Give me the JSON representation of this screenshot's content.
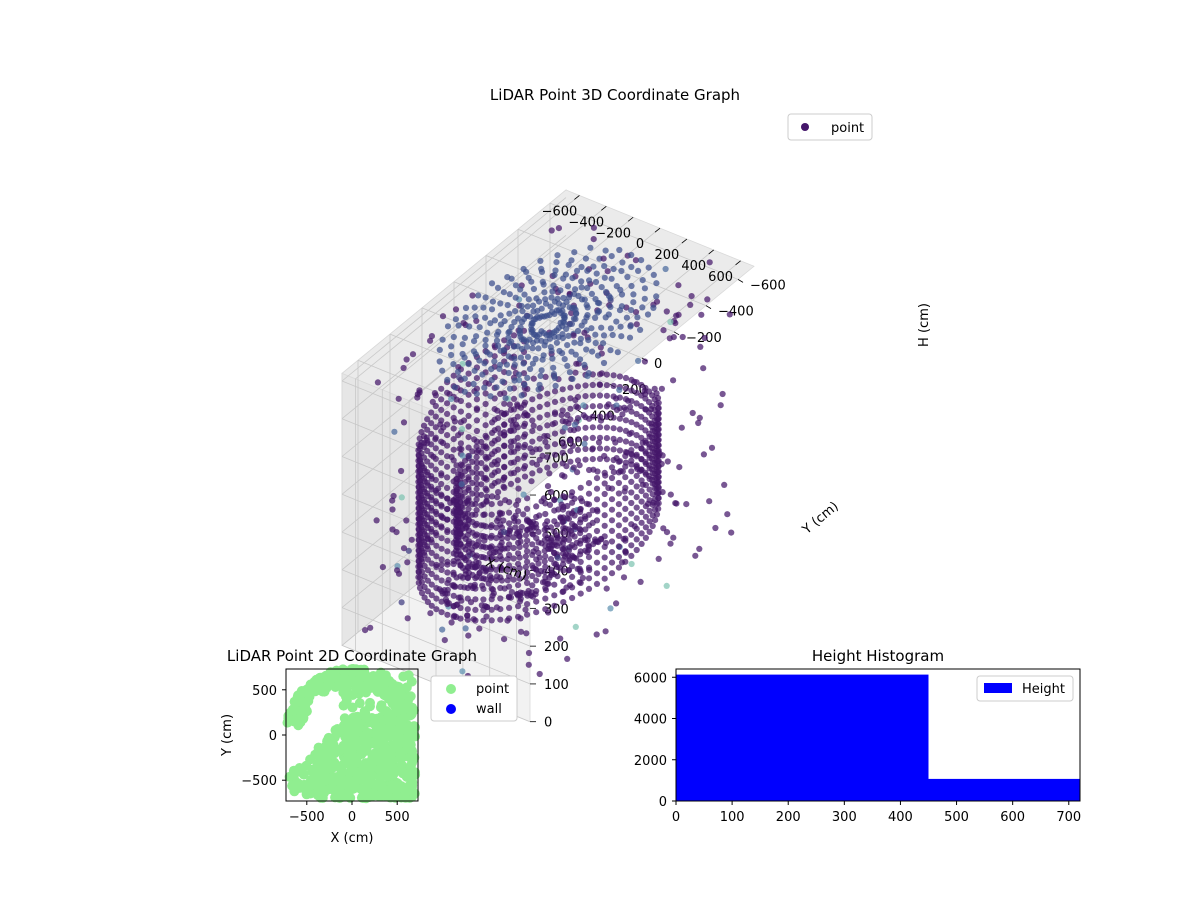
{
  "colors": {
    "point_3d": "#44166a",
    "floor_points": "#3b4d8c",
    "outliers": [
      "#3f3a80",
      "#4a6a9c",
      "#5e92b0",
      "#7ec4b2"
    ],
    "point_2d": "#90ee90",
    "wall_2d": "#0000ff",
    "histogram": "#0000ff",
    "pane": "#f2f2f2",
    "grid": "#c8c8c8"
  },
  "chart_data": [
    {
      "type": "scatter",
      "projection": "3d",
      "title": "LiDAR Point 3D Coordinate Graph",
      "xlabel": "X (cm)",
      "ylabel": "Y (cm)",
      "zlabel": "H (cm)",
      "xlim": [
        -700,
        700
      ],
      "ylim": [
        -700,
        700
      ],
      "zlim": [
        0,
        720
      ],
      "z_inverted": true,
      "x_ticks": [
        "−600",
        "−400",
        "−200",
        "0",
        "200",
        "400",
        "600"
      ],
      "y_ticks": [
        "−600",
        "−400",
        "−200",
        "0",
        "200",
        "400",
        "600"
      ],
      "z_ticks": [
        "0",
        "100",
        "200",
        "300",
        "400",
        "500",
        "600",
        "700"
      ],
      "grid": true,
      "legend": {
        "position": "top-right",
        "entries": [
          "point"
        ]
      },
      "colormap": "viridis",
      "structure": {
        "spiral_wall": {
          "radius_start": 660,
          "radius_end": 380,
          "turns": 1.55,
          "h_top": 130,
          "h_bottom": 520
        },
        "floor_disk": {
          "radius": 560,
          "h": 720
        },
        "scatter_count": 420
      }
    },
    {
      "type": "scatter",
      "title": "LiDAR Point 2D Coordinate Graph",
      "xlabel": "X (cm)",
      "ylabel": "Y (cm)",
      "xlim": [
        -730,
        730
      ],
      "ylim": [
        -730,
        730
      ],
      "x_ticks": [
        "−500",
        "0",
        "500"
      ],
      "y_ticks": [
        "−500",
        "0",
        "500"
      ],
      "legend": {
        "position": "outside-right",
        "entries": [
          "point",
          "wall"
        ]
      }
    },
    {
      "type": "bar",
      "title": "Height Histogram",
      "bins": [
        [
          0,
          450
        ],
        [
          450,
          720
        ]
      ],
      "values": [
        6130,
        1070
      ],
      "xlim": [
        0,
        720
      ],
      "ylim": [
        0,
        6400
      ],
      "x_ticks": [
        "0",
        "100",
        "200",
        "300",
        "400",
        "500",
        "600",
        "700"
      ],
      "y_ticks": [
        "0",
        "2000",
        "4000",
        "6000"
      ],
      "legend": {
        "position": "top-right",
        "entries": [
          "Height"
        ]
      }
    }
  ]
}
